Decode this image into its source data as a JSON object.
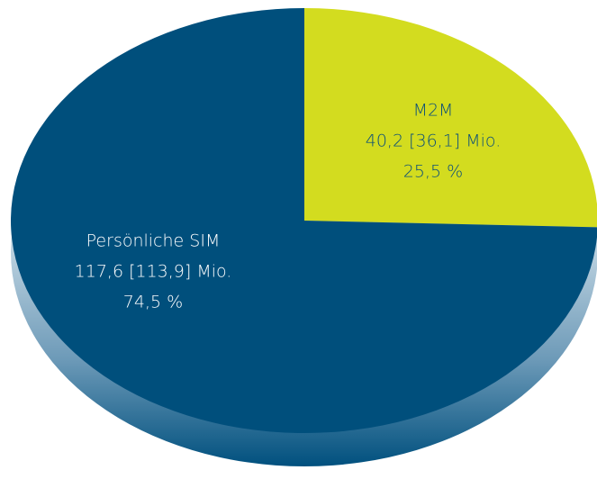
{
  "chart_data": {
    "type": "pie",
    "categories": [
      "M2M",
      "Persönliche SIM"
    ],
    "values": [
      25.5,
      74.5
    ],
    "value_labels": [
      "25,5 %",
      "74,5 %"
    ],
    "detail_labels": [
      "40,2 [36,1] Mio.",
      "117,6 [113,9] Mio."
    ],
    "colors": [
      "#d3dc1f",
      "#004f7c"
    ]
  }
}
